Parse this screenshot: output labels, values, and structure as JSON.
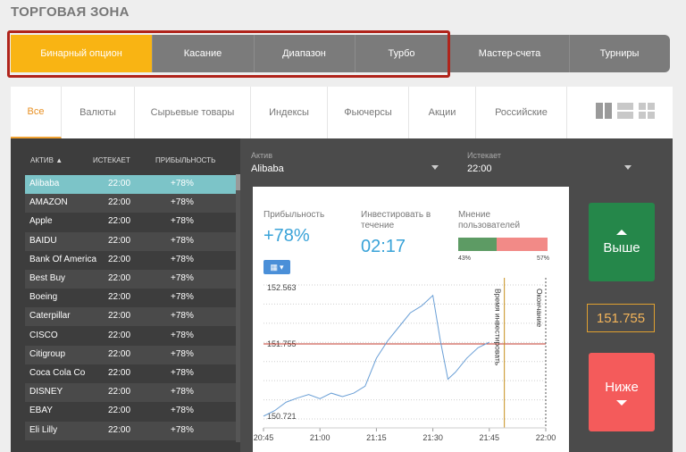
{
  "page": {
    "title": "ТОРГОВАЯ ЗОНА"
  },
  "option_tabs": [
    {
      "label": "Бинарный опцион",
      "active": true
    },
    {
      "label": "Касание",
      "active": false
    },
    {
      "label": "Диапазон",
      "active": false
    },
    {
      "label": "Турбо",
      "active": false
    },
    {
      "label": "Мастер-счета",
      "active": false
    },
    {
      "label": "Турниры",
      "active": false
    }
  ],
  "filters": [
    {
      "label": "Все",
      "active": true
    },
    {
      "label": "Валюты",
      "active": false
    },
    {
      "label": "Сырьевые товары",
      "active": false
    },
    {
      "label": "Индексы",
      "active": false
    },
    {
      "label": "Фьючерсы",
      "active": false
    },
    {
      "label": "Акции",
      "active": false
    },
    {
      "label": "Российские",
      "active": false
    }
  ],
  "asset_table": {
    "headers": {
      "asset": "АКТИВ",
      "expires": "ИСТЕКАЕТ",
      "profit": "ПРИБЫЛЬНОСТЬ"
    },
    "rows": [
      {
        "asset": "Alibaba",
        "expires": "22:00",
        "profit": "+78%"
      },
      {
        "asset": "AMAZON",
        "expires": "22:00",
        "profit": "+78%"
      },
      {
        "asset": "Apple",
        "expires": "22:00",
        "profit": "+78%"
      },
      {
        "asset": "BAIDU",
        "expires": "22:00",
        "profit": "+78%"
      },
      {
        "asset": "Bank Of America",
        "expires": "22:00",
        "profit": "+78%"
      },
      {
        "asset": "Best Buy",
        "expires": "22:00",
        "profit": "+78%"
      },
      {
        "asset": "Boeing",
        "expires": "22:00",
        "profit": "+78%"
      },
      {
        "asset": "Caterpillar",
        "expires": "22:00",
        "profit": "+78%"
      },
      {
        "asset": "CISCO",
        "expires": "22:00",
        "profit": "+78%"
      },
      {
        "asset": "Citigroup",
        "expires": "22:00",
        "profit": "+78%"
      },
      {
        "asset": "Coca Cola Co",
        "expires": "22:00",
        "profit": "+78%"
      },
      {
        "asset": "DISNEY",
        "expires": "22:00",
        "profit": "+78%"
      },
      {
        "asset": "EBAY",
        "expires": "22:00",
        "profit": "+78%"
      },
      {
        "asset": "Eli Lilly",
        "expires": "22:00",
        "profit": "+78%"
      }
    ]
  },
  "selectors": {
    "asset": {
      "label": "Актив",
      "value": "Alibaba"
    },
    "expires": {
      "label": "Истекает",
      "value": "22:00"
    }
  },
  "trade": {
    "profit_label": "Прибыльность",
    "profit_value": "+78%",
    "invest_label": "Инвестировать в течение",
    "invest_value": "02:17",
    "opinion_label": "Мнение пользователей",
    "opinion_green_pct": "43%",
    "opinion_red_pct": "57%",
    "opinion_green_fraction": 0.43,
    "up_label": "Выше",
    "down_label": "Ниже",
    "current_price": "151.755"
  },
  "chart_data": {
    "type": "line",
    "x_ticks": [
      "20:45",
      "21:00",
      "21:15",
      "21:30",
      "21:45",
      "22:00"
    ],
    "y_labels": [
      "152.563",
      "151.755",
      "150.721"
    ],
    "ylim": [
      150.68,
      152.6
    ],
    "current_level": 151.755,
    "invest_line_label": "Время инвестировать",
    "invest_line_x": "21:49",
    "end_line_label": "Окончание",
    "end_line_x": "22:00",
    "series": [
      {
        "x": [
          "20:45",
          "20:48",
          "20:51",
          "20:54",
          "20:57",
          "21:00",
          "21:03",
          "21:06",
          "21:09",
          "21:12",
          "21:15",
          "21:18",
          "21:21",
          "21:24",
          "21:27",
          "21:30",
          "21:32",
          "21:34",
          "21:36",
          "21:39",
          "21:42",
          "21:45"
        ],
        "values": [
          150.72,
          150.8,
          150.92,
          150.98,
          151.03,
          150.97,
          151.05,
          151.0,
          151.05,
          151.15,
          151.55,
          151.8,
          152.0,
          152.2,
          152.3,
          152.45,
          151.8,
          151.25,
          151.35,
          151.55,
          151.7,
          151.78
        ]
      }
    ],
    "colors": {
      "line": "#6a9fd6",
      "level": "#c0392b",
      "invest": "#c8901e",
      "end": "#555555"
    }
  }
}
